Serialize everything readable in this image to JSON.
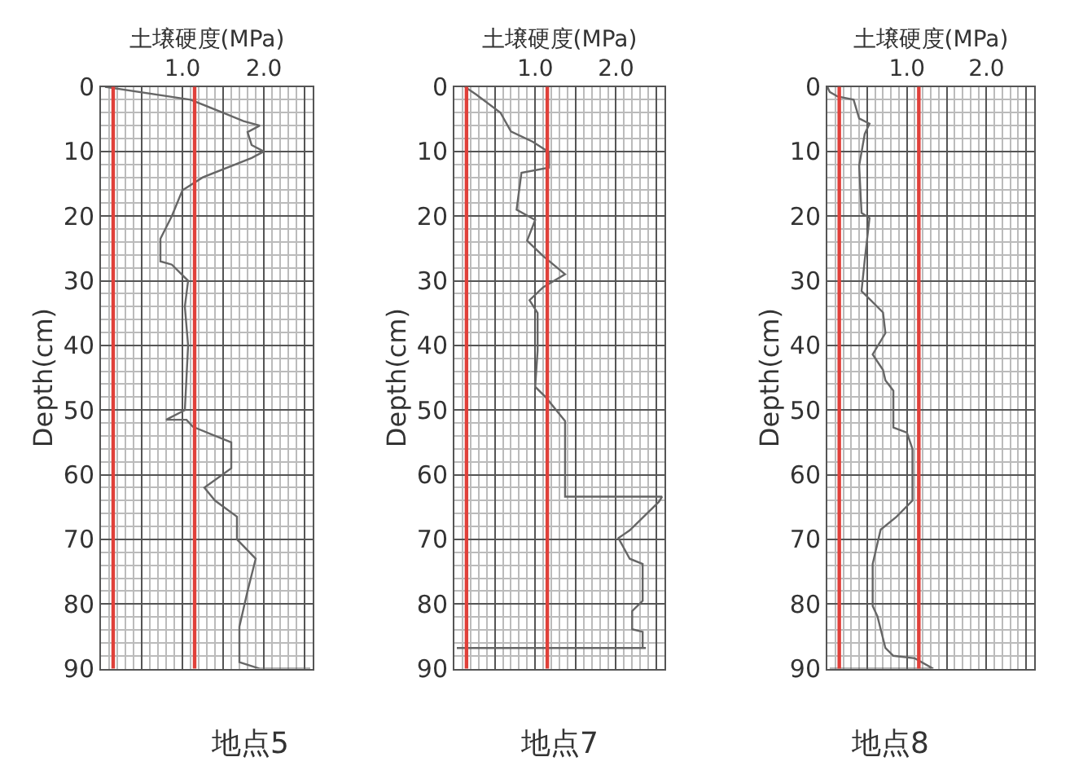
{
  "chart_data": [
    {
      "type": "line",
      "orientation": "horizontal",
      "title": "地点5",
      "xlabel": "土壌硬度(MPa)",
      "ylabel": "Depth(cm)",
      "series": [
        {
          "color": "#666666",
          "x": [
            0,
            2,
            4,
            5.3,
            6,
            7,
            9,
            10,
            11,
            14,
            16,
            20,
            23.5,
            27,
            27.5,
            30,
            34,
            40,
            50,
            51.5,
            51.5,
            52.6,
            55,
            59,
            62,
            64,
            66.5,
            70,
            73,
            78,
            83.5,
            89,
            90,
            90
          ],
          "values": [
            0.05,
            1.1,
            1.5,
            1.75,
            1.95,
            1.8,
            1.85,
            2.0,
            1.85,
            1.25,
            1.0,
            0.87,
            0.73,
            0.73,
            0.87,
            1.07,
            1.03,
            1.07,
            1.03,
            0.8,
            1.05,
            1.13,
            1.6,
            1.6,
            1.27,
            1.4,
            1.67,
            1.67,
            1.9,
            1.8,
            1.7,
            1.7,
            1.95,
            2.57
          ]
        }
      ],
      "xlim": [
        0,
        2.6
      ],
      "xticks": [
        {
          "value": 0.5,
          "label": null
        },
        {
          "value": 1,
          "label": "1.0"
        },
        {
          "value": 1.5,
          "label": null
        },
        {
          "value": 2,
          "label": "2.0"
        },
        {
          "value": 2.5,
          "label": null
        }
      ],
      "ylim": [
        90,
        0
      ],
      "yticks": [
        0,
        10,
        20,
        30,
        40,
        50,
        60,
        70,
        80,
        90
      ],
      "grid": true,
      "line_style": "solid",
      "ref_lines": [
        {
          "axis": "x",
          "value": 0.15,
          "color": "#e0403a"
        },
        {
          "axis": "x",
          "value": 1.15,
          "color": "#e0403a"
        }
      ]
    },
    {
      "type": "line",
      "orientation": "horizontal",
      "title": "地点7",
      "xlabel": "土壌硬度(MPa)",
      "ylabel": "Depth(cm)",
      "series": [
        {
          "color": "#666666",
          "x": [
            0,
            1.2,
            4,
            6.9,
            8.5,
            10.1,
            12.5,
            13.3,
            19,
            20.6,
            23.8,
            26.2,
            29,
            31,
            33,
            35,
            40.8,
            46.4,
            48,
            51.7,
            63.4,
            63.4,
            64.2,
            68.6,
            69.8,
            73,
            73.8,
            79.5,
            81.1,
            83.9,
            84.3,
            86.8,
            86.8,
            86.8
          ],
          "values": [
            0.13,
            0.27,
            0.57,
            0.7,
            0.97,
            1.17,
            1.17,
            0.83,
            0.77,
            1.0,
            0.9,
            1.1,
            1.37,
            1.1,
            0.93,
            1.03,
            1.03,
            1.0,
            1.13,
            1.37,
            1.37,
            2.57,
            2.53,
            2.17,
            2.03,
            2.17,
            2.33,
            2.33,
            2.2,
            2.2,
            2.33,
            2.33,
            2.37,
            0.03
          ]
        }
      ],
      "xlim": [
        0,
        2.6
      ],
      "xticks": [
        {
          "value": 0.5,
          "label": null
        },
        {
          "value": 1,
          "label": "1.0"
        },
        {
          "value": 1.5,
          "label": null
        },
        {
          "value": 2,
          "label": "2.0"
        },
        {
          "value": 2.5,
          "label": null
        }
      ],
      "ylim": [
        90,
        0
      ],
      "yticks": [
        0,
        10,
        20,
        30,
        40,
        50,
        60,
        70,
        80,
        90
      ],
      "grid": true,
      "line_style": "solid",
      "ref_lines": [
        {
          "axis": "x",
          "value": 0.15,
          "color": "#e0403a"
        },
        {
          "axis": "x",
          "value": 1.15,
          "color": "#e0403a"
        }
      ]
    },
    {
      "type": "line",
      "orientation": "horizontal",
      "title": "地点8",
      "xlabel": "土壌硬度(MPa)",
      "ylabel": "Depth(cm)",
      "series": [
        {
          "color": "#666666",
          "x": [
            0,
            0.8,
            1.5,
            2,
            4.9,
            5.7,
            7.3,
            12.2,
            19.5,
            20.3,
            26.8,
            31.6,
            32.8,
            34.9,
            38.1,
            41.4,
            43.8,
            45.4,
            47,
            52.7,
            53.5,
            56,
            64,
            66.5,
            68.5,
            73.8,
            80.3,
            81.9,
            86.8,
            88,
            88.4,
            90,
            90
          ],
          "values": [
            0,
            0.03,
            0.13,
            0.33,
            0.4,
            0.53,
            0.47,
            0.4,
            0.43,
            0.53,
            0.47,
            0.43,
            0.53,
            0.7,
            0.73,
            0.57,
            0.7,
            0.73,
            0.83,
            0.83,
            1.0,
            1.07,
            1.07,
            0.87,
            0.67,
            0.57,
            0.57,
            0.63,
            0.73,
            0.83,
            1.1,
            1.33,
            0.03
          ]
        }
      ],
      "xlim": [
        0,
        2.6
      ],
      "xticks": [
        {
          "value": 0.5,
          "label": null
        },
        {
          "value": 1,
          "label": "1.0"
        },
        {
          "value": 1.5,
          "label": null
        },
        {
          "value": 2,
          "label": "2.0"
        },
        {
          "value": 2.5,
          "label": null
        }
      ],
      "ylim": [
        90,
        0
      ],
      "yticks": [
        0,
        10,
        20,
        30,
        40,
        50,
        60,
        70,
        80,
        90
      ],
      "grid": true,
      "line_style": "solid",
      "ref_lines": [
        {
          "axis": "x",
          "value": 0.15,
          "color": "#e0403a"
        },
        {
          "axis": "x",
          "value": 1.15,
          "color": "#e0403a"
        }
      ]
    }
  ]
}
